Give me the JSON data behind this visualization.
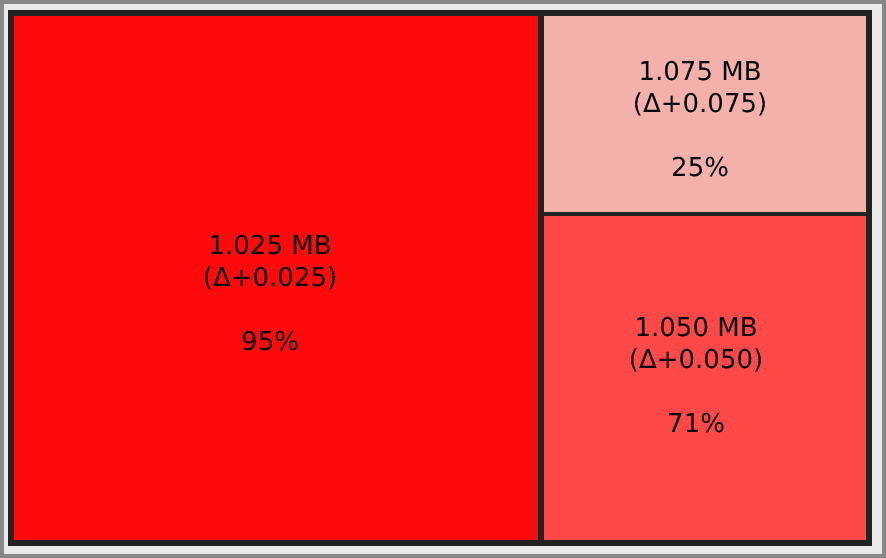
{
  "chart_data": {
    "type": "other",
    "categories": [
      "1.025 MB",
      "1.075 MB",
      "1.050 MB"
    ],
    "values": [
      95,
      25,
      71
    ],
    "value_labels": [
      "95%",
      "25%",
      "71%"
    ],
    "colors": [
      "#ff0a0a",
      "#f4b0aa",
      "#ff4848"
    ],
    "annotations": [
      {
        "text": "(Δ+0.025)",
        "x": "1.025 MB"
      },
      {
        "text": "(Δ+0.075)",
        "x": "1.075 MB"
      },
      {
        "text": "(Δ+0.050)",
        "x": "1.050 MB"
      }
    ]
  }
}
